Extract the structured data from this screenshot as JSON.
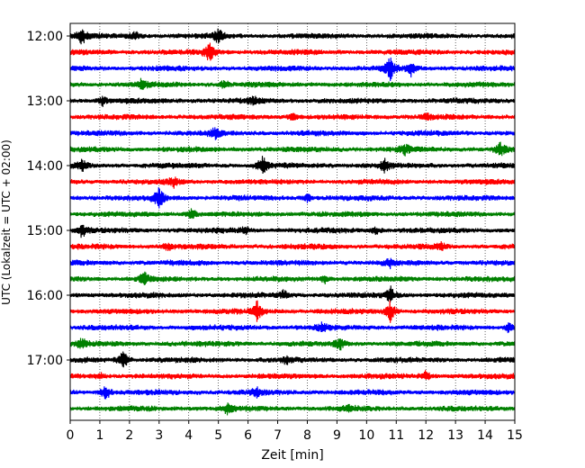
{
  "chart_data": {
    "type": "line",
    "title": "",
    "xlabel": "Zeit  [min]",
    "ylabel": "UTC (Lokalzeit = UTC + 02:00)",
    "xlim": [
      0,
      15
    ],
    "xticks": [
      0,
      1,
      2,
      3,
      4,
      5,
      6,
      7,
      8,
      9,
      10,
      11,
      12,
      13,
      14,
      15
    ],
    "yticks": [
      "12:00",
      "13:00",
      "14:00",
      "15:00",
      "16:00",
      "17:00"
    ],
    "grid": "vertical-dotted",
    "trace_interval_minutes": 15,
    "colors": [
      "#000000",
      "#ff0000",
      "#0000ff",
      "#008000"
    ],
    "traces": [
      {
        "start": "12:00",
        "color": "#000000",
        "events": [
          {
            "t": 0.4,
            "amp": 1.2
          },
          {
            "t": 2.2,
            "amp": 0.6
          },
          {
            "t": 5.0,
            "amp": 0.9
          }
        ]
      },
      {
        "start": "12:15",
        "color": "#ff0000",
        "events": [
          {
            "t": 4.7,
            "amp": 1.3
          }
        ]
      },
      {
        "start": "12:30",
        "color": "#0000ff",
        "events": [
          {
            "t": 10.8,
            "amp": 1.6
          },
          {
            "t": 11.5,
            "amp": 0.9
          }
        ]
      },
      {
        "start": "12:45",
        "color": "#008000",
        "events": [
          {
            "t": 2.4,
            "amp": 0.7
          },
          {
            "t": 5.2,
            "amp": 0.6
          }
        ]
      },
      {
        "start": "13:00",
        "color": "#000000",
        "events": [
          {
            "t": 1.1,
            "amp": 0.6
          },
          {
            "t": 6.2,
            "amp": 0.5
          }
        ]
      },
      {
        "start": "13:15",
        "color": "#ff0000",
        "events": [
          {
            "t": 7.5,
            "amp": 0.6
          },
          {
            "t": 12.0,
            "amp": 0.5
          }
        ]
      },
      {
        "start": "13:30",
        "color": "#0000ff",
        "events": [
          {
            "t": 4.9,
            "amp": 0.8
          }
        ]
      },
      {
        "start": "13:45",
        "color": "#008000",
        "events": [
          {
            "t": 11.3,
            "amp": 0.6
          },
          {
            "t": 14.5,
            "amp": 1.1
          }
        ]
      },
      {
        "start": "14:00",
        "color": "#000000",
        "events": [
          {
            "t": 0.4,
            "amp": 0.7
          },
          {
            "t": 6.5,
            "amp": 1.3
          },
          {
            "t": 10.6,
            "amp": 0.9
          }
        ]
      },
      {
        "start": "14:15",
        "color": "#ff0000",
        "events": [
          {
            "t": 3.5,
            "amp": 0.6
          }
        ]
      },
      {
        "start": "14:30",
        "color": "#0000ff",
        "events": [
          {
            "t": 3.0,
            "amp": 1.5
          },
          {
            "t": 8.0,
            "amp": 0.6
          }
        ]
      },
      {
        "start": "14:45",
        "color": "#008000",
        "events": [
          {
            "t": 4.1,
            "amp": 0.7
          }
        ]
      },
      {
        "start": "15:00",
        "color": "#000000",
        "events": [
          {
            "t": 0.4,
            "amp": 0.9
          },
          {
            "t": 5.9,
            "amp": 0.5
          },
          {
            "t": 10.3,
            "amp": 0.5
          }
        ]
      },
      {
        "start": "15:15",
        "color": "#ff0000",
        "events": [
          {
            "t": 3.3,
            "amp": 0.5
          },
          {
            "t": 12.5,
            "amp": 0.5
          }
        ]
      },
      {
        "start": "15:30",
        "color": "#0000ff",
        "events": [
          {
            "t": 10.8,
            "amp": 0.6
          }
        ]
      },
      {
        "start": "15:45",
        "color": "#008000",
        "events": [
          {
            "t": 2.5,
            "amp": 0.9
          },
          {
            "t": 8.6,
            "amp": 0.6
          }
        ]
      },
      {
        "start": "16:00",
        "color": "#000000",
        "events": [
          {
            "t": 7.2,
            "amp": 0.5
          },
          {
            "t": 10.8,
            "amp": 1.2
          }
        ]
      },
      {
        "start": "16:15",
        "color": "#ff0000",
        "events": [
          {
            "t": 6.3,
            "amp": 1.4
          },
          {
            "t": 10.8,
            "amp": 1.5
          }
        ]
      },
      {
        "start": "16:30",
        "color": "#0000ff",
        "events": [
          {
            "t": 8.5,
            "amp": 0.5
          },
          {
            "t": 14.8,
            "amp": 0.6
          }
        ]
      },
      {
        "start": "16:45",
        "color": "#008000",
        "events": [
          {
            "t": 0.4,
            "amp": 0.7
          },
          {
            "t": 9.1,
            "amp": 0.8
          }
        ]
      },
      {
        "start": "17:00",
        "color": "#000000",
        "events": [
          {
            "t": 1.8,
            "amp": 1.4
          },
          {
            "t": 7.3,
            "amp": 0.5
          }
        ]
      },
      {
        "start": "17:15",
        "color": "#ff0000",
        "events": [
          {
            "t": 1.0,
            "amp": 0.5
          },
          {
            "t": 12.0,
            "amp": 0.6
          }
        ]
      },
      {
        "start": "17:30",
        "color": "#0000ff",
        "events": [
          {
            "t": 1.2,
            "amp": 1.1
          },
          {
            "t": 6.3,
            "amp": 0.6
          }
        ]
      },
      {
        "start": "17:45",
        "color": "#008000",
        "events": [
          {
            "t": 5.3,
            "amp": 0.7
          },
          {
            "t": 9.4,
            "amp": 0.4
          }
        ]
      }
    ]
  }
}
